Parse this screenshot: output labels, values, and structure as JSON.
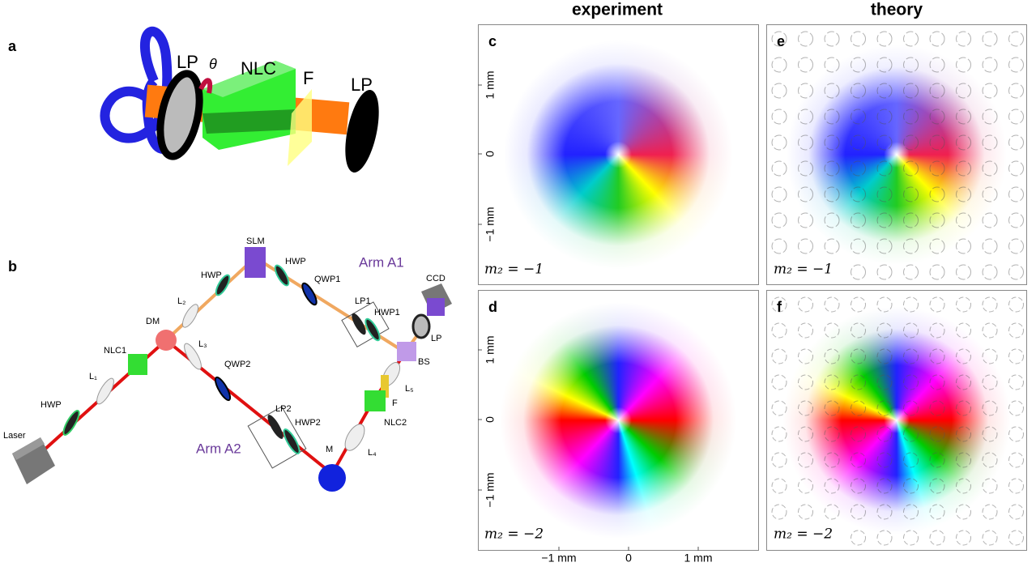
{
  "panel_labels": [
    "a",
    "b",
    "c",
    "d",
    "e",
    "f"
  ],
  "column_titles": [
    "experiment",
    "theory"
  ],
  "panel_a": {
    "labels": [
      "LP",
      "θ",
      "NLC",
      "F",
      "LP"
    ]
  },
  "panel_b": {
    "labels": [
      "SLM",
      "HWP",
      "HWP",
      "QWP1",
      "CCD",
      "L₂",
      "LP1",
      "HWP1",
      "DM",
      "L₃",
      "LP",
      "NLC1",
      "BS",
      "QWP2",
      "L₁",
      "L₅",
      "F",
      "HWP",
      "LP2",
      "NLC2",
      "HWP2",
      "Laser",
      "M",
      "L₄"
    ],
    "arms": [
      "Arm A1",
      "Arm A2"
    ]
  },
  "axes": {
    "y_ticks": [
      "1 mm",
      "0",
      "−1 mm"
    ],
    "x_ticks": [
      "−1 mm",
      "0",
      "1 mm"
    ]
  },
  "annotations": [
    "m₂ = −1",
    "m₂ = −2",
    "m₂ = −1",
    "m₂ = −2"
  ]
}
